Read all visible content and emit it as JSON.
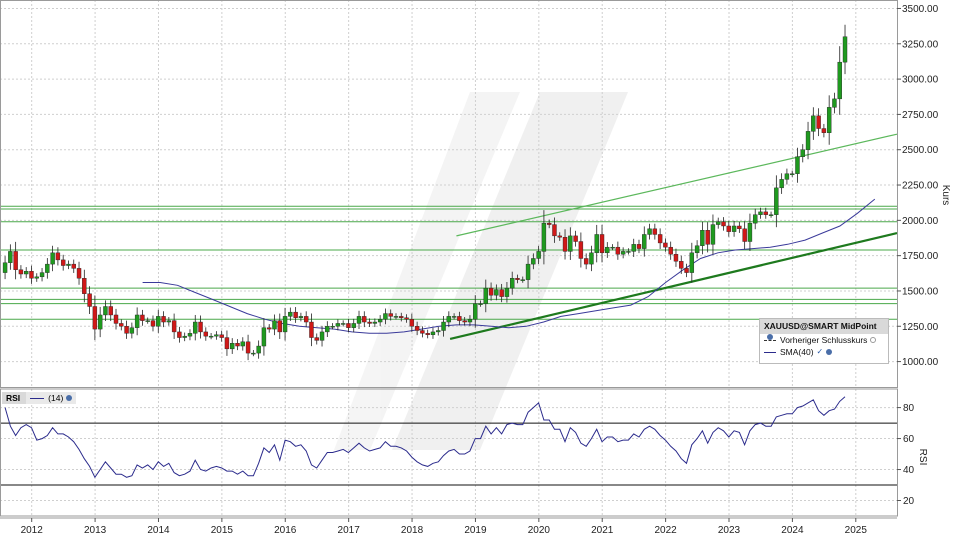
{
  "chart_data": [
    {
      "type": "candlestick",
      "symbol": "XAUUSD@SMART MidPoint",
      "ylabel": "Kurs",
      "ylim": [
        820,
        3560
      ],
      "yticks": [
        1000,
        1250,
        1500,
        1750,
        2000,
        2250,
        2500,
        2750,
        3000,
        3250,
        3500
      ],
      "ytick_labels": [
        "1000.00",
        "1250.00",
        "1500.00",
        "1750.00",
        "2000.00",
        "2250.00",
        "2500.00",
        "2750.00",
        "3000.00",
        "3250.00",
        "3500.00"
      ],
      "xlim": [
        2011.5,
        2025.65
      ],
      "xticks": [
        2012,
        2013,
        2014,
        2015,
        2016,
        2017,
        2018,
        2019,
        2020,
        2021,
        2022,
        2023,
        2024,
        2025
      ],
      "xtick_labels": [
        "2012",
        "2013",
        "2014",
        "2015",
        "2016",
        "2017",
        "2018",
        "2019",
        "2020",
        "2021",
        "2022",
        "2023",
        "2024",
        "2025"
      ],
      "grid": true,
      "legend": {
        "placement": "bottom-right",
        "entries": [
          "Vorheriger Schlusskurs",
          "SMA(40)"
        ]
      },
      "colors": {
        "up": "#1f9a1f",
        "down": "#d01818",
        "sma": "#3a3a9a",
        "hline": "#4aa84a",
        "trend": "#2a8a2a"
      },
      "close": [
        1700,
        1780,
        1650,
        1620,
        1640,
        1590,
        1600,
        1630,
        1690,
        1770,
        1720,
        1680,
        1690,
        1660,
        1590,
        1480,
        1390,
        1230,
        1330,
        1390,
        1330,
        1270,
        1250,
        1200,
        1240,
        1330,
        1290,
        1290,
        1250,
        1320,
        1280,
        1290,
        1210,
        1170,
        1180,
        1200,
        1280,
        1210,
        1180,
        1180,
        1190,
        1170,
        1090,
        1130,
        1110,
        1140,
        1060,
        1060,
        1110,
        1240,
        1230,
        1290,
        1210,
        1320,
        1350,
        1310,
        1320,
        1280,
        1170,
        1150,
        1210,
        1250,
        1250,
        1270,
        1270,
        1240,
        1270,
        1320,
        1280,
        1270,
        1280,
        1300,
        1340,
        1320,
        1320,
        1310,
        1300,
        1250,
        1220,
        1200,
        1190,
        1210,
        1220,
        1280,
        1320,
        1320,
        1290,
        1280,
        1300,
        1410,
        1410,
        1520,
        1470,
        1510,
        1460,
        1520,
        1590,
        1580,
        1580,
        1690,
        1730,
        1780,
        1980,
        1970,
        1890,
        1880,
        1780,
        1890,
        1850,
        1730,
        1690,
        1770,
        1900,
        1770,
        1810,
        1810,
        1760,
        1780,
        1780,
        1830,
        1800,
        1900,
        1940,
        1900,
        1840,
        1810,
        1760,
        1710,
        1660,
        1630,
        1770,
        1820,
        1930,
        1830,
        1970,
        1990,
        1960,
        1920,
        1960,
        1940,
        1850,
        1980,
        2040,
        2060,
        2040,
        2040,
        2230,
        2290,
        2330,
        2330,
        2450,
        2500,
        2630,
        2740,
        2650,
        2620,
        2800,
        2860,
        3120,
        3300
      ],
      "sma40": [
        1560,
        1560,
        1540,
        1490,
        1440,
        1390,
        1340,
        1300,
        1270,
        1250,
        1240,
        1230,
        1210,
        1200,
        1200,
        1210,
        1230,
        1250,
        1260,
        1260,
        1250,
        1240,
        1250,
        1280,
        1320,
        1340,
        1360,
        1380,
        1400,
        1460,
        1560,
        1650,
        1730,
        1770,
        1790,
        1800,
        1810,
        1830,
        1860,
        1910,
        1960,
        2050,
        2150
      ],
      "hlines": [
        1300,
        1410,
        1440,
        1520,
        1790,
        1990,
        2080,
        2100
      ],
      "trendlines": [
        {
          "from": [
            2018.6,
            1160
          ],
          "to": [
            2025.65,
            1910
          ]
        },
        {
          "from": [
            2018.7,
            1890
          ],
          "to": [
            2025.65,
            2610
          ]
        }
      ]
    },
    {
      "type": "line",
      "series_name": "(14)",
      "ylabel": "RSI",
      "ylim": [
        10,
        92
      ],
      "yticks": [
        20,
        40,
        60,
        80
      ],
      "ytick_labels": [
        "20",
        "40",
        "60",
        "80"
      ],
      "hlines": [
        30,
        70
      ],
      "values": [
        80,
        68,
        62,
        67,
        69,
        67,
        59,
        60,
        62,
        67,
        63,
        63,
        61,
        58,
        53,
        47,
        42,
        35,
        40,
        45,
        41,
        37,
        37,
        35,
        36,
        43,
        41,
        43,
        40,
        45,
        42,
        44,
        38,
        36,
        37,
        39,
        46,
        40,
        39,
        41,
        42,
        41,
        39,
        39,
        37,
        39,
        36,
        36,
        44,
        54,
        51,
        56,
        46,
        59,
        58,
        55,
        56,
        52,
        43,
        41,
        46,
        51,
        51,
        52,
        53,
        51,
        54,
        57,
        54,
        52,
        53,
        54,
        58,
        55,
        55,
        54,
        52,
        48,
        45,
        43,
        42,
        44,
        45,
        49,
        52,
        53,
        50,
        50,
        52,
        60,
        60,
        68,
        63,
        67,
        63,
        69,
        70,
        69,
        69,
        77,
        80,
        83,
        72,
        72,
        66,
        66,
        58,
        67,
        64,
        57,
        55,
        60,
        66,
        58,
        61,
        61,
        58,
        59,
        59,
        63,
        61,
        66,
        68,
        66,
        62,
        59,
        55,
        52,
        47,
        44,
        56,
        60,
        65,
        57,
        64,
        67,
        65,
        61,
        65,
        64,
        56,
        65,
        69,
        70,
        68,
        68,
        74,
        75,
        76,
        76,
        80,
        81,
        83,
        85,
        78,
        75,
        78,
        79,
        84,
        87
      ]
    }
  ],
  "legend": {
    "title": "XAUUSD@SMART MidPoint",
    "prev_close": "Vorheriger Schlusskurs",
    "sma": "SMA(40)"
  },
  "rsi_panel": {
    "tag": "RSI",
    "series": "(14)"
  }
}
